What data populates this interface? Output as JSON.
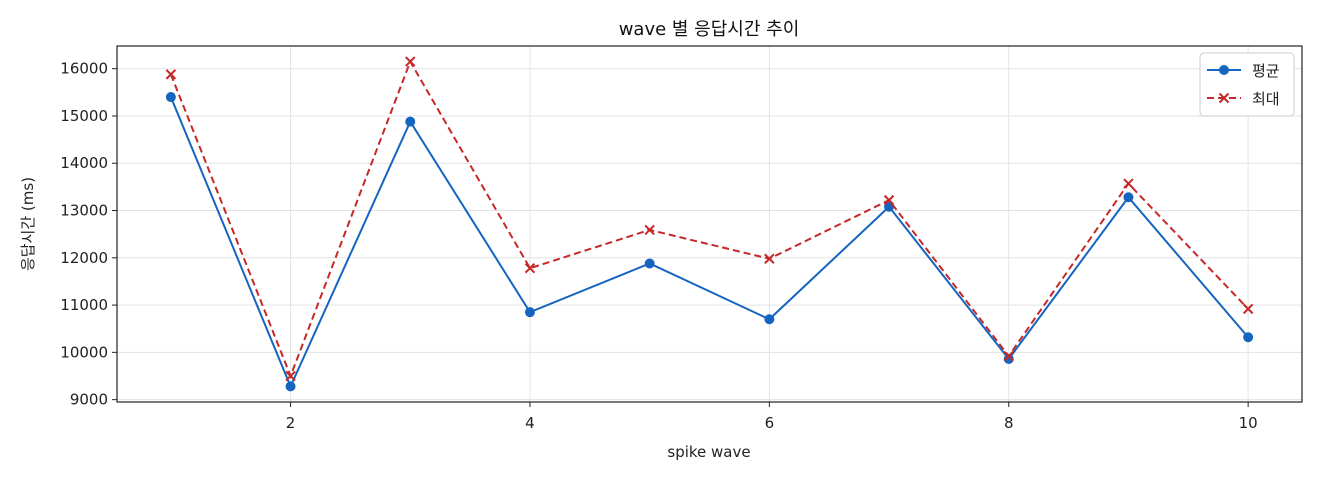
{
  "chart_data": {
    "type": "line",
    "title": "wave 별 응답시간 추이",
    "xlabel": "spike wave",
    "ylabel": "응답시간 (ms)",
    "x": [
      1,
      2,
      3,
      4,
      5,
      6,
      7,
      8,
      9,
      10
    ],
    "xticks": [
      2,
      4,
      6,
      8,
      10
    ],
    "yticks": [
      9000,
      10000,
      11000,
      12000,
      13000,
      14000,
      15000,
      16000
    ],
    "xlim": [
      0.55,
      10.45
    ],
    "ylim": [
      8950,
      16480
    ],
    "grid": true,
    "legend_position": "top-right",
    "series": [
      {
        "name": "평균",
        "color": "#1565c0",
        "marker": "circle",
        "linestyle": "solid",
        "values": [
          15400,
          9280,
          14880,
          10850,
          11880,
          10700,
          13080,
          9860,
          13280,
          10320
        ]
      },
      {
        "name": "최대",
        "color": "#c62828",
        "marker": "x",
        "linestyle": "dashed",
        "values": [
          15880,
          9500,
          16150,
          11780,
          12590,
          11980,
          13220,
          9920,
          13570,
          10920
        ]
      }
    ]
  }
}
